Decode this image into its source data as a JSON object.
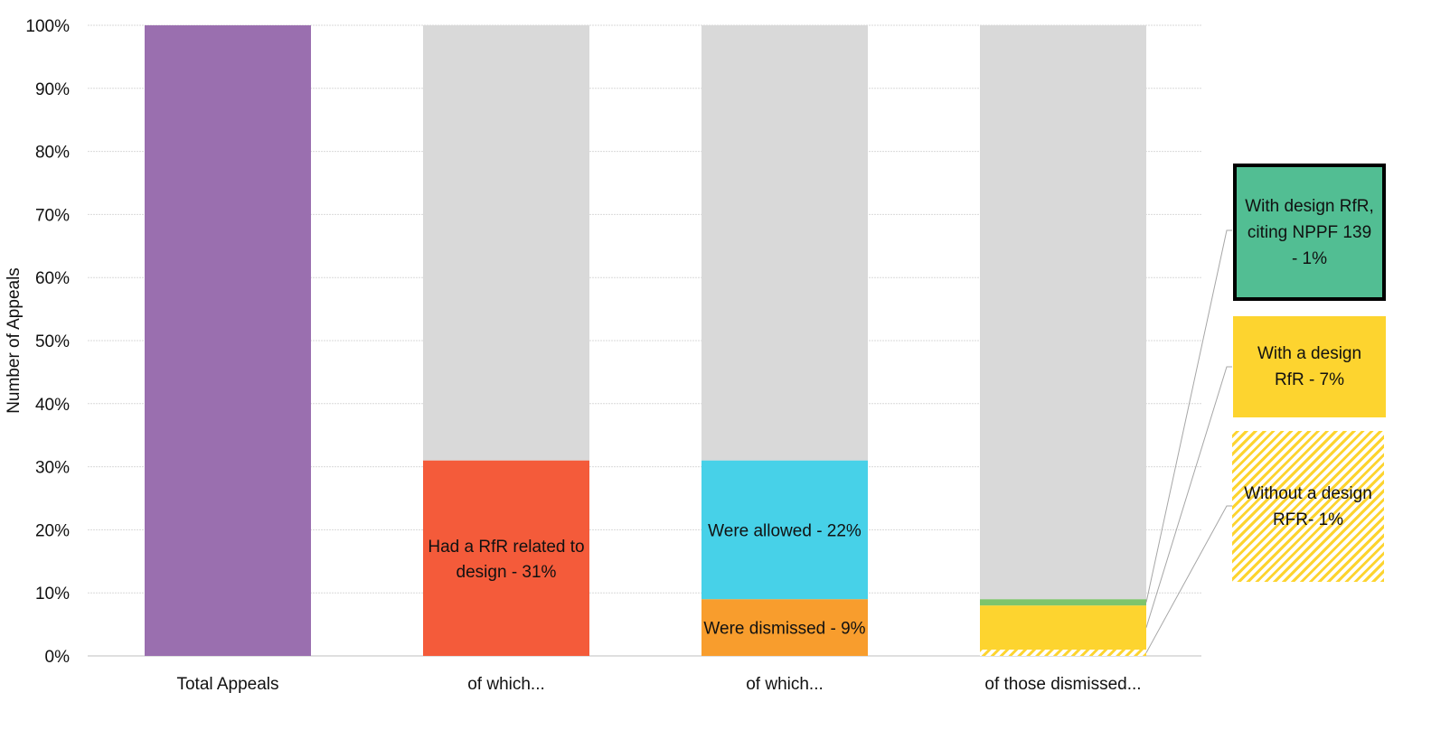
{
  "chart_data": {
    "type": "stacked-bar",
    "ylabel": "Number of Appeals",
    "ylim": [
      0,
      100
    ],
    "yticks": [
      "0%",
      "10%",
      "20%",
      "30%",
      "40%",
      "50%",
      "60%",
      "70%",
      "80%",
      "90%",
      "100%"
    ],
    "categories": [
      "Total Appeals",
      "of which...",
      "of which...",
      "of those dismissed..."
    ],
    "bars": [
      {
        "segments": [
          {
            "value": 100,
            "color": "#9a6faf",
            "label": ""
          }
        ]
      },
      {
        "segments": [
          {
            "value": 31,
            "color": "#f45b3a",
            "label": "Had a RfR related to design - 31%"
          },
          {
            "value": 69,
            "color": "#d9d9d9",
            "label": ""
          }
        ]
      },
      {
        "segments": [
          {
            "value": 9,
            "color": "#f89d2d",
            "label": "Were dismissed - 9%"
          },
          {
            "value": 22,
            "color": "#47d1e8",
            "label": "Were allowed - 22%"
          },
          {
            "value": 69,
            "color": "#d9d9d9",
            "label": ""
          }
        ]
      },
      {
        "segments": [
          {
            "value": 1,
            "color": "#fdd42f",
            "pattern": "hatch",
            "label": ""
          },
          {
            "value": 7,
            "color": "#fdd42f",
            "label": ""
          },
          {
            "value": 1,
            "color": "#7dc46b",
            "label": ""
          },
          {
            "value": 91,
            "color": "#d9d9d9",
            "label": ""
          }
        ]
      }
    ],
    "callouts": [
      {
        "text": "With design RfR, citing NPPF 139 - 1%",
        "color": "#52be93"
      },
      {
        "text": "With a design RfR - 7%",
        "color": "#fdd42f"
      },
      {
        "text": "Without a design RFR- 1%",
        "color": "#fdd42f",
        "pattern": "hatch"
      }
    ],
    "grid": true,
    "gridColor": "#d9d9d9"
  }
}
